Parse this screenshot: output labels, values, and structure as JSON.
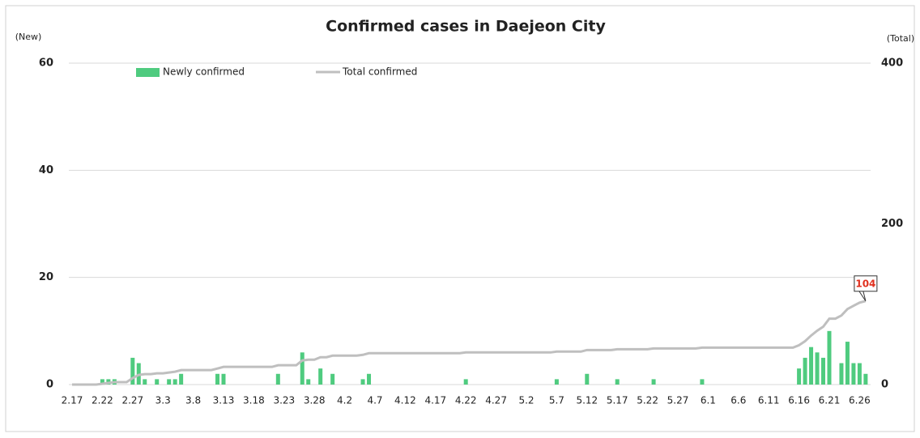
{
  "chart_data": {
    "type": "bar",
    "title": "Confirmed cases in Daejeon City",
    "ylabel": "(New)",
    "y2label": "(Total)",
    "categories": [
      "2.17",
      null,
      null,
      null,
      null,
      "2.22",
      null,
      null,
      null,
      null,
      "2.27",
      null,
      null,
      null,
      null,
      "3.3",
      null,
      null,
      null,
      null,
      "3.8",
      null,
      null,
      null,
      null,
      "3.13",
      null,
      null,
      null,
      null,
      "3.18",
      null,
      null,
      null,
      null,
      "3.23",
      null,
      null,
      null,
      null,
      "3.28",
      null,
      null,
      null,
      null,
      "4.2",
      null,
      null,
      null,
      null,
      "4.7",
      null,
      null,
      null,
      null,
      "4.12",
      null,
      null,
      null,
      null,
      "4.17",
      null,
      null,
      null,
      null,
      "4.22",
      null,
      null,
      null,
      null,
      "4.27",
      null,
      null,
      null,
      null,
      "5.2",
      null,
      null,
      null,
      null,
      "5.7",
      null,
      null,
      null,
      null,
      "5.12",
      null,
      null,
      null,
      null,
      "5.17",
      null,
      null,
      null,
      null,
      "5.22",
      null,
      null,
      null,
      null,
      "5.27",
      null,
      null,
      null,
      null,
      "6.1",
      null,
      null,
      null,
      null,
      "6.6",
      null,
      null,
      null,
      null,
      "6.11",
      null,
      null,
      null,
      null,
      "6.16",
      null,
      null,
      null,
      null,
      "6.21",
      null,
      null,
      null,
      null,
      "6.26",
      null
    ],
    "series": [
      {
        "name": "Newly confirmed",
        "type": "bar",
        "color": "#4fcb7f",
        "values": [
          0,
          0,
          0,
          0,
          0,
          1,
          1,
          1,
          0,
          0,
          5,
          4,
          1,
          0,
          1,
          0,
          1,
          1,
          2,
          0,
          0,
          0,
          0,
          0,
          2,
          2,
          0,
          0,
          0,
          0,
          0,
          0,
          0,
          0,
          2,
          0,
          0,
          0,
          6,
          1,
          0,
          3,
          0,
          2,
          0,
          0,
          0,
          0,
          1,
          2,
          0,
          0,
          0,
          0,
          0,
          0,
          0,
          0,
          0,
          0,
          0,
          0,
          0,
          0,
          0,
          1,
          0,
          0,
          0,
          0,
          0,
          0,
          0,
          0,
          0,
          0,
          0,
          0,
          0,
          0,
          1,
          0,
          0,
          0,
          0,
          2,
          0,
          0,
          0,
          0,
          1,
          0,
          0,
          0,
          0,
          0,
          1,
          0,
          0,
          0,
          0,
          0,
          0,
          0,
          1,
          0,
          0,
          0,
          0,
          0,
          0,
          0,
          0,
          0,
          0,
          0,
          0,
          0,
          0,
          0,
          3,
          5,
          7,
          6,
          5,
          10,
          0,
          4,
          8,
          4,
          4,
          2
        ]
      },
      {
        "name": "Total confirmed",
        "type": "line",
        "axis": "y2",
        "color": "#bfbfbf",
        "values": [
          0,
          0,
          0,
          0,
          0,
          1,
          2,
          3,
          3,
          3,
          8,
          12,
          13,
          13,
          14,
          14,
          15,
          16,
          18,
          18,
          18,
          18,
          18,
          18,
          20,
          22,
          22,
          22,
          22,
          22,
          22,
          22,
          22,
          22,
          24,
          24,
          24,
          24,
          30,
          31,
          31,
          34,
          34,
          36,
          36,
          36,
          36,
          36,
          37,
          39,
          39,
          39,
          39,
          39,
          39,
          39,
          39,
          39,
          39,
          39,
          39,
          39,
          39,
          39,
          39,
          40,
          40,
          40,
          40,
          40,
          40,
          40,
          40,
          40,
          40,
          40,
          40,
          40,
          40,
          40,
          41,
          41,
          41,
          41,
          41,
          43,
          43,
          43,
          43,
          43,
          44,
          44,
          44,
          44,
          44,
          44,
          45,
          45,
          45,
          45,
          45,
          45,
          45,
          45,
          46,
          46,
          46,
          46,
          46,
          46,
          46,
          46,
          46,
          46,
          46,
          46,
          46,
          46,
          46,
          46,
          49,
          54,
          61,
          67,
          72,
          82,
          82,
          86,
          94,
          98,
          102,
          104
        ]
      }
    ],
    "ylim": [
      0,
      60
    ],
    "yticks": [
      0,
      20,
      40,
      60
    ],
    "y2lim": [
      0,
      400
    ],
    "y2ticks": [
      0,
      200,
      400
    ],
    "grid": true,
    "legend": "top"
  }
}
